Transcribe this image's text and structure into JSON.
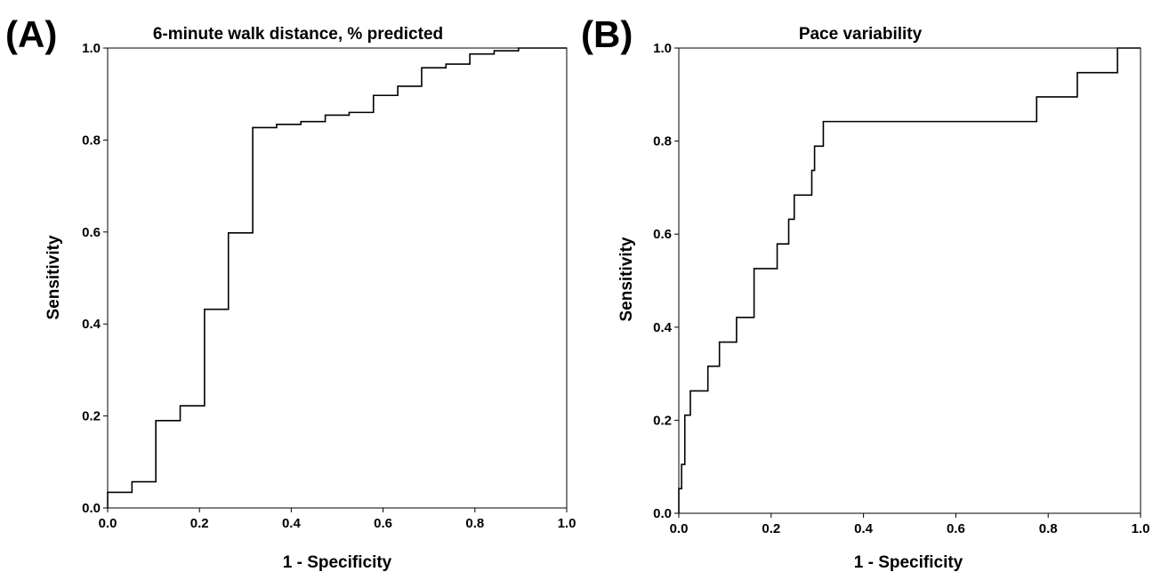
{
  "chart_data": [
    {
      "type": "line",
      "panel_label": "(A)",
      "title": "6-minute walk distance, % predicted",
      "xlabel": "1 - Specificity",
      "ylabel": "Sensitivity",
      "xlim": [
        0,
        1
      ],
      "ylim": [
        0,
        1
      ],
      "xticks": [
        "0.0",
        "0.2",
        "0.4",
        "0.6",
        "0.8",
        "1.0"
      ],
      "yticks": [
        "0.0",
        "0.2",
        "0.4",
        "0.6",
        "0.8",
        "1.0"
      ],
      "grid": false,
      "line_color": "#000000",
      "x": [
        0,
        0,
        0.053,
        0.053,
        0.105,
        0.105,
        0.158,
        0.158,
        0.211,
        0.211,
        0.263,
        0.263,
        0.316,
        0.316,
        0.368,
        0.368,
        0.421,
        0.421,
        0.474,
        0.474,
        0.526,
        0.526,
        0.579,
        0.579,
        0.632,
        0.632,
        0.684,
        0.684,
        0.737,
        0.737,
        0.789,
        0.789,
        0.842,
        0.842,
        0.895,
        0.895,
        1.0
      ],
      "y": [
        0,
        0.034,
        0.034,
        0.057,
        0.057,
        0.19,
        0.19,
        0.222,
        0.222,
        0.432,
        0.432,
        0.598,
        0.598,
        0.827,
        0.827,
        0.834,
        0.834,
        0.84,
        0.84,
        0.854,
        0.854,
        0.86,
        0.86,
        0.897,
        0.897,
        0.917,
        0.917,
        0.957,
        0.957,
        0.965,
        0.965,
        0.987,
        0.987,
        0.994,
        0.994,
        1.0,
        1.0
      ]
    },
    {
      "type": "line",
      "panel_label": "(B)",
      "title": "Pace variability",
      "xlabel": "1 - Specificity",
      "ylabel": "Sensitivity",
      "xlim": [
        0,
        1
      ],
      "ylim": [
        0,
        1
      ],
      "xticks": [
        "0.0",
        "0.2",
        "0.4",
        "0.6",
        "0.8",
        "1.0"
      ],
      "yticks": [
        "0.0",
        "0.2",
        "0.4",
        "0.6",
        "0.8",
        "1.0"
      ],
      "grid": false,
      "line_color": "#000000",
      "x": [
        0,
        0,
        0.006,
        0.006,
        0.013,
        0.013,
        0.025,
        0.025,
        0.063,
        0.063,
        0.088,
        0.088,
        0.125,
        0.125,
        0.163,
        0.163,
        0.213,
        0.213,
        0.238,
        0.238,
        0.25,
        0.25,
        0.288,
        0.288,
        0.294,
        0.294,
        0.313,
        0.313,
        0.775,
        0.775,
        0.863,
        0.863,
        0.95,
        0.95,
        1.0
      ],
      "y": [
        0,
        0.053,
        0.053,
        0.105,
        0.105,
        0.211,
        0.211,
        0.263,
        0.263,
        0.316,
        0.316,
        0.368,
        0.368,
        0.421,
        0.421,
        0.526,
        0.526,
        0.579,
        0.579,
        0.632,
        0.632,
        0.684,
        0.684,
        0.737,
        0.737,
        0.789,
        0.789,
        0.842,
        0.842,
        0.895,
        0.895,
        0.947,
        0.947,
        1.0,
        1.0
      ]
    }
  ]
}
